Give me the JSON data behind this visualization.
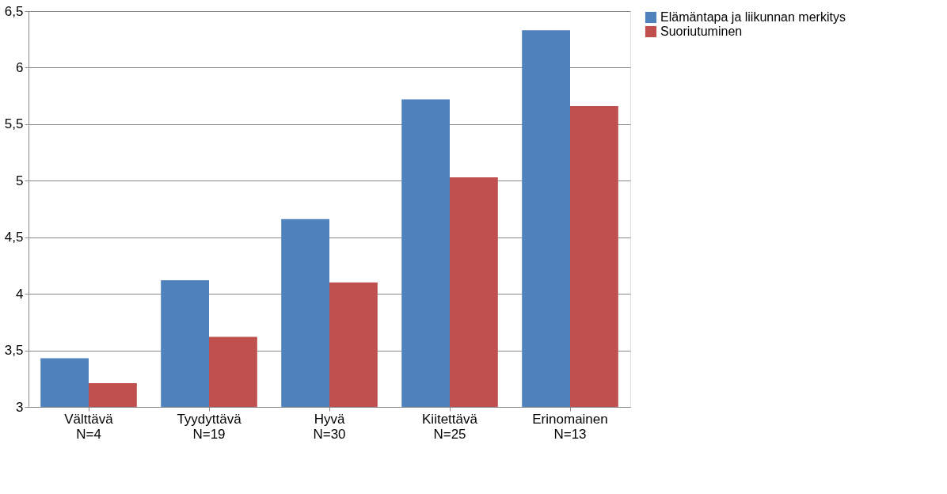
{
  "chart_data": {
    "type": "bar",
    "categories": [
      "Välttävä N=4",
      "Tyydyttävä N=19",
      "Hyvä N=30",
      "Kiitettävä N=25",
      "Erinomainen N=13"
    ],
    "series": [
      {
        "name": "Elämäntapa ja liikunnan merkitys",
        "color": "#4f81bd",
        "values": [
          3.43,
          4.12,
          4.66,
          5.72,
          6.33
        ]
      },
      {
        "name": "Suoriutuminen",
        "color": "#c0504d",
        "values": [
          3.21,
          3.62,
          4.1,
          5.03,
          5.66
        ]
      }
    ],
    "ylim": [
      3,
      6.5
    ],
    "yticks": [
      3,
      {
        "value": 3.5,
        "label": "3,5"
      },
      4,
      {
        "value": 4.5,
        "label": "4,5"
      },
      5,
      {
        "value": 5.5,
        "label": "5,5"
      },
      6,
      {
        "value": 6.5,
        "label": "6,5"
      }
    ],
    "grid": "y",
    "legend": "right"
  }
}
